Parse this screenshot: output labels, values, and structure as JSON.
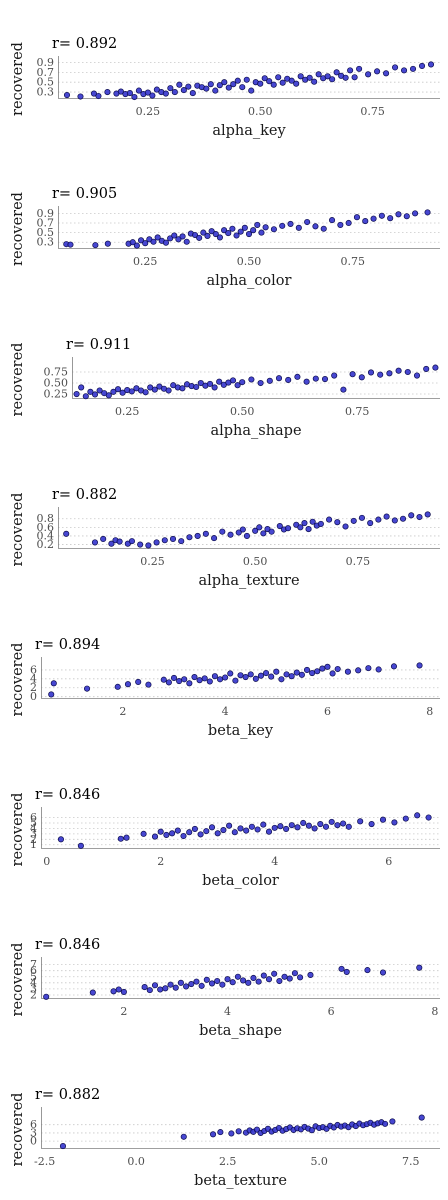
{
  "chart_data": [
    {
      "type": "scatter",
      "title": "r= 0.892",
      "xlabel": "alpha_key",
      "ylabel": "recovered",
      "xlim": [
        0.05,
        0.9
      ],
      "ylim": [
        0.18,
        0.95
      ],
      "xticks": [
        0.25,
        0.5,
        0.75
      ],
      "xtick_labels": [
        "0.25",
        "0.50",
        "0.75"
      ],
      "yticks": [
        0.3,
        0.5,
        0.7,
        0.9
      ],
      "ytick_labels": [
        "0.3",
        "0.5",
        "0.7",
        "0.9"
      ],
      "grid": "horizontal-dotted",
      "x": [
        0.07,
        0.1,
        0.13,
        0.14,
        0.16,
        0.18,
        0.19,
        0.2,
        0.21,
        0.22,
        0.23,
        0.24,
        0.25,
        0.26,
        0.27,
        0.28,
        0.29,
        0.3,
        0.31,
        0.32,
        0.33,
        0.34,
        0.35,
        0.36,
        0.37,
        0.38,
        0.39,
        0.4,
        0.41,
        0.42,
        0.43,
        0.44,
        0.45,
        0.46,
        0.47,
        0.48,
        0.49,
        0.5,
        0.51,
        0.52,
        0.53,
        0.54,
        0.55,
        0.56,
        0.57,
        0.58,
        0.59,
        0.6,
        0.61,
        0.62,
        0.63,
        0.64,
        0.65,
        0.66,
        0.67,
        0.68,
        0.69,
        0.7,
        0.71,
        0.72,
        0.74,
        0.76,
        0.78,
        0.8,
        0.82,
        0.84,
        0.86,
        0.88
      ],
      "y": [
        0.24,
        0.21,
        0.27,
        0.22,
        0.3,
        0.27,
        0.31,
        0.26,
        0.28,
        0.2,
        0.33,
        0.26,
        0.29,
        0.23,
        0.35,
        0.3,
        0.27,
        0.38,
        0.3,
        0.45,
        0.34,
        0.41,
        0.28,
        0.43,
        0.4,
        0.37,
        0.46,
        0.33,
        0.44,
        0.5,
        0.39,
        0.46,
        0.53,
        0.4,
        0.55,
        0.33,
        0.5,
        0.47,
        0.58,
        0.52,
        0.45,
        0.6,
        0.49,
        0.57,
        0.53,
        0.47,
        0.62,
        0.55,
        0.59,
        0.51,
        0.66,
        0.58,
        0.62,
        0.56,
        0.7,
        0.63,
        0.59,
        0.74,
        0.6,
        0.77,
        0.66,
        0.72,
        0.68,
        0.8,
        0.74,
        0.77,
        0.83,
        0.86
      ]
    },
    {
      "type": "scatter",
      "title": "r= 0.905",
      "xlabel": "alpha_color",
      "ylabel": "recovered",
      "xlim": [
        0.04,
        0.96
      ],
      "ylim": [
        0.18,
        0.97
      ],
      "xticks": [
        0.25,
        0.5,
        0.75
      ],
      "xtick_labels": [
        "0.25",
        "0.50",
        "0.75"
      ],
      "yticks": [
        0.3,
        0.5,
        0.7,
        0.9
      ],
      "ytick_labels": [
        "0.3",
        "0.5",
        "0.7",
        "0.9"
      ],
      "grid": "horizontal-dotted",
      "x": [
        0.06,
        0.07,
        0.13,
        0.16,
        0.21,
        0.22,
        0.23,
        0.24,
        0.25,
        0.26,
        0.27,
        0.28,
        0.29,
        0.3,
        0.31,
        0.32,
        0.33,
        0.34,
        0.35,
        0.36,
        0.37,
        0.38,
        0.39,
        0.4,
        0.41,
        0.42,
        0.43,
        0.44,
        0.45,
        0.46,
        0.47,
        0.48,
        0.49,
        0.5,
        0.51,
        0.52,
        0.53,
        0.54,
        0.56,
        0.58,
        0.6,
        0.62,
        0.64,
        0.66,
        0.68,
        0.7,
        0.72,
        0.74,
        0.76,
        0.78,
        0.8,
        0.82,
        0.84,
        0.86,
        0.88,
        0.9,
        0.93
      ],
      "y": [
        0.26,
        0.25,
        0.24,
        0.27,
        0.27,
        0.3,
        0.23,
        0.34,
        0.28,
        0.36,
        0.31,
        0.4,
        0.33,
        0.29,
        0.38,
        0.44,
        0.36,
        0.42,
        0.31,
        0.48,
        0.45,
        0.39,
        0.5,
        0.43,
        0.53,
        0.47,
        0.4,
        0.55,
        0.49,
        0.58,
        0.44,
        0.52,
        0.6,
        0.47,
        0.55,
        0.66,
        0.5,
        0.61,
        0.57,
        0.64,
        0.68,
        0.6,
        0.72,
        0.63,
        0.58,
        0.76,
        0.66,
        0.7,
        0.82,
        0.74,
        0.79,
        0.85,
        0.8,
        0.88,
        0.84,
        0.9,
        0.92
      ]
    },
    {
      "type": "scatter",
      "title": "r= 0.911",
      "xlabel": "alpha_shape",
      "ylabel": "recovered",
      "xlim": [
        0.13,
        0.93
      ],
      "ylim": [
        0.16,
        1.0
      ],
      "xticks": [
        0.25,
        0.5,
        0.75
      ],
      "xtick_labels": [
        "0.25",
        "0.50",
        "0.75"
      ],
      "yticks": [
        0.25,
        0.5,
        0.75
      ],
      "ytick_labels": [
        "0.25",
        "0.50",
        "0.75"
      ],
      "grid": "horizontal-dotted",
      "x": [
        0.14,
        0.15,
        0.16,
        0.17,
        0.18,
        0.19,
        0.2,
        0.21,
        0.22,
        0.23,
        0.24,
        0.25,
        0.26,
        0.27,
        0.28,
        0.29,
        0.3,
        0.31,
        0.32,
        0.33,
        0.34,
        0.35,
        0.36,
        0.37,
        0.38,
        0.39,
        0.4,
        0.41,
        0.42,
        0.43,
        0.44,
        0.45,
        0.46,
        0.47,
        0.48,
        0.49,
        0.5,
        0.52,
        0.54,
        0.56,
        0.58,
        0.6,
        0.62,
        0.64,
        0.66,
        0.68,
        0.7,
        0.72,
        0.74,
        0.76,
        0.78,
        0.8,
        0.82,
        0.84,
        0.86,
        0.88,
        0.9,
        0.92
      ],
      "y": [
        0.25,
        0.4,
        0.2,
        0.3,
        0.24,
        0.33,
        0.27,
        0.22,
        0.3,
        0.36,
        0.28,
        0.34,
        0.31,
        0.38,
        0.33,
        0.29,
        0.4,
        0.35,
        0.42,
        0.37,
        0.33,
        0.45,
        0.4,
        0.38,
        0.47,
        0.43,
        0.41,
        0.5,
        0.44,
        0.48,
        0.4,
        0.53,
        0.46,
        0.51,
        0.56,
        0.45,
        0.52,
        0.58,
        0.5,
        0.55,
        0.61,
        0.57,
        0.64,
        0.53,
        0.6,
        0.59,
        0.67,
        0.35,
        0.7,
        0.63,
        0.74,
        0.69,
        0.72,
        0.78,
        0.75,
        0.67,
        0.82,
        0.85
      ]
    },
    {
      "type": "scatter",
      "title": "r= 0.882",
      "xlabel": "alpha_texture",
      "ylabel": "recovered",
      "xlim": [
        0.02,
        0.95
      ],
      "ylim": [
        0.12,
        0.98
      ],
      "xticks": [
        0.25,
        0.5,
        0.75
      ],
      "xtick_labels": [
        "0.25",
        "0.50",
        "0.75"
      ],
      "yticks": [
        0.2,
        0.4,
        0.6,
        0.8
      ],
      "ytick_labels": [
        "0.2",
        "0.4",
        "0.6",
        "0.8"
      ],
      "grid": "horizontal-dotted",
      "x": [
        0.04,
        0.11,
        0.13,
        0.15,
        0.16,
        0.17,
        0.19,
        0.2,
        0.22,
        0.24,
        0.26,
        0.28,
        0.3,
        0.32,
        0.34,
        0.36,
        0.38,
        0.4,
        0.42,
        0.44,
        0.46,
        0.47,
        0.48,
        0.5,
        0.51,
        0.52,
        0.53,
        0.54,
        0.56,
        0.57,
        0.58,
        0.6,
        0.61,
        0.62,
        0.63,
        0.64,
        0.65,
        0.66,
        0.68,
        0.7,
        0.72,
        0.74,
        0.76,
        0.78,
        0.8,
        0.82,
        0.84,
        0.86,
        0.88,
        0.9,
        0.92
      ],
      "y": [
        0.45,
        0.25,
        0.33,
        0.22,
        0.3,
        0.27,
        0.22,
        0.28,
        0.2,
        0.18,
        0.25,
        0.3,
        0.33,
        0.28,
        0.37,
        0.4,
        0.45,
        0.35,
        0.5,
        0.43,
        0.48,
        0.55,
        0.4,
        0.52,
        0.6,
        0.46,
        0.56,
        0.5,
        0.63,
        0.55,
        0.58,
        0.66,
        0.6,
        0.7,
        0.56,
        0.73,
        0.64,
        0.68,
        0.78,
        0.72,
        0.62,
        0.75,
        0.82,
        0.7,
        0.78,
        0.85,
        0.76,
        0.8,
        0.88,
        0.84,
        0.9
      ]
    },
    {
      "type": "scatter",
      "title": "r= 0.894",
      "xlabel": "beta_key",
      "ylabel": "recovered",
      "xlim": [
        0.4,
        8.2
      ],
      "ylim": [
        -0.3,
        8.0
      ],
      "xticks": [
        2,
        4,
        6,
        8
      ],
      "xtick_labels": [
        "2",
        "4",
        "6",
        "8"
      ],
      "yticks": [
        0,
        2,
        4,
        6
      ],
      "ytick_labels": [
        "0",
        "2",
        "4",
        "6"
      ],
      "grid": "horizontal-dotted",
      "x": [
        0.6,
        0.65,
        1.3,
        1.9,
        2.1,
        2.3,
        2.5,
        2.8,
        2.9,
        3.0,
        3.1,
        3.2,
        3.3,
        3.4,
        3.5,
        3.6,
        3.7,
        3.8,
        3.9,
        4.0,
        4.1,
        4.2,
        4.3,
        4.4,
        4.5,
        4.6,
        4.7,
        4.8,
        4.9,
        5.0,
        5.1,
        5.2,
        5.3,
        5.4,
        5.5,
        5.6,
        5.7,
        5.8,
        5.9,
        6.0,
        6.1,
        6.2,
        6.4,
        6.6,
        6.8,
        7.0,
        7.3,
        7.8
      ],
      "y": [
        0.5,
        3.0,
        1.8,
        2.2,
        2.8,
        3.3,
        2.7,
        3.8,
        3.2,
        4.2,
        3.5,
        3.9,
        3.0,
        4.4,
        3.7,
        4.1,
        3.4,
        4.6,
        3.9,
        4.3,
        5.2,
        3.6,
        4.8,
        4.4,
        5.0,
        4.0,
        4.7,
        5.3,
        4.5,
        5.6,
        3.9,
        5.0,
        4.6,
        5.4,
        4.9,
        6.0,
        5.3,
        5.7,
        6.3,
        6.7,
        5.2,
        6.2,
        5.6,
        5.9,
        6.4,
        6.1,
        6.8,
        7.0
      ]
    },
    {
      "type": "scatter",
      "title": "r= 0.846",
      "xlabel": "beta_color",
      "ylabel": "recovered",
      "xlim": [
        -0.1,
        6.9
      ],
      "ylim": [
        0.4,
        7.2
      ],
      "xticks": [
        0,
        2,
        4,
        6
      ],
      "xtick_labels": [
        "0",
        "2",
        "4",
        "6"
      ],
      "yticks": [
        1,
        2,
        3,
        4,
        5,
        6
      ],
      "ytick_labels": [
        "1",
        "2",
        "3",
        "4",
        "5",
        "6"
      ],
      "grid": "horizontal-dotted",
      "x": [
        0.25,
        0.6,
        1.3,
        1.4,
        1.7,
        1.9,
        2.0,
        2.1,
        2.2,
        2.3,
        2.4,
        2.5,
        2.6,
        2.7,
        2.8,
        2.9,
        3.0,
        3.1,
        3.2,
        3.3,
        3.4,
        3.5,
        3.6,
        3.7,
        3.8,
        3.9,
        4.0,
        4.1,
        4.2,
        4.3,
        4.4,
        4.5,
        4.6,
        4.7,
        4.8,
        4.9,
        5.0,
        5.1,
        5.2,
        5.3,
        5.5,
        5.7,
        5.9,
        6.1,
        6.3,
        6.5,
        6.7
      ],
      "y": [
        2.0,
        0.8,
        2.1,
        2.3,
        3.0,
        2.5,
        3.4,
        2.8,
        3.1,
        3.6,
        2.6,
        3.3,
        3.9,
        2.9,
        3.5,
        4.2,
        3.1,
        3.7,
        4.5,
        3.3,
        4.0,
        3.6,
        4.3,
        3.8,
        4.7,
        3.4,
        4.1,
        4.4,
        3.9,
        4.6,
        4.2,
        5.0,
        4.5,
        4.0,
        4.8,
        4.3,
        5.2,
        4.6,
        4.9,
        4.3,
        5.3,
        4.8,
        5.6,
        5.1,
        5.8,
        6.4,
        6.0
      ]
    },
    {
      "type": "scatter",
      "title": "r= 0.846",
      "xlabel": "beta_shape",
      "ylabel": "recovered",
      "xlim": [
        0.4,
        8.1
      ],
      "ylim": [
        1.5,
        7.6
      ],
      "xticks": [
        2,
        4,
        6,
        8
      ],
      "xtick_labels": [
        "2",
        "4",
        "6",
        "8"
      ],
      "yticks": [
        2,
        3,
        4,
        5,
        6,
        7
      ],
      "ytick_labels": [
        "2",
        "3",
        "4",
        "5",
        "6",
        "7"
      ],
      "grid": "horizontal-dotted",
      "x": [
        0.5,
        1.4,
        1.8,
        1.9,
        2.0,
        2.4,
        2.5,
        2.6,
        2.7,
        2.8,
        2.9,
        3.0,
        3.1,
        3.2,
        3.3,
        3.4,
        3.5,
        3.6,
        3.7,
        3.8,
        3.9,
        4.0,
        4.1,
        4.2,
        4.3,
        4.4,
        4.5,
        4.6,
        4.7,
        4.8,
        4.9,
        5.0,
        5.1,
        5.2,
        5.3,
        5.4,
        5.6,
        6.2,
        6.3,
        6.7,
        7.0,
        7.7
      ],
      "y": [
        1.7,
        2.4,
        2.6,
        2.9,
        2.5,
        3.3,
        2.8,
        3.6,
        2.9,
        3.1,
        3.7,
        3.2,
        4.0,
        3.4,
        3.8,
        4.2,
        3.5,
        4.5,
        3.9,
        4.3,
        3.7,
        4.6,
        4.1,
        5.0,
        4.4,
        4.0,
        4.8,
        4.2,
        5.2,
        4.6,
        5.5,
        4.3,
        5.0,
        4.7,
        5.6,
        4.9,
        5.3,
        6.3,
        5.8,
        6.1,
        5.7,
        6.5
      ]
    },
    {
      "type": "scatter",
      "title": "r= 0.882",
      "xlabel": "beta_texture",
      "ylabel": "recovered",
      "xlim": [
        -2.6,
        8.3
      ],
      "ylim": [
        -2.5,
        11.0
      ],
      "xticks": [
        -2.5,
        0.0,
        2.5,
        5.0,
        7.5
      ],
      "xtick_labels": [
        "-2.5",
        "0.0",
        "2.5",
        "5.0",
        "7.5"
      ],
      "yticks": [
        0,
        3,
        6
      ],
      "ytick_labels": [
        "0",
        "3",
        "6"
      ],
      "grid": "horizontal-dotted",
      "x": [
        -2.0,
        1.3,
        2.1,
        2.3,
        2.6,
        2.8,
        3.0,
        3.1,
        3.2,
        3.3,
        3.4,
        3.5,
        3.6,
        3.7,
        3.8,
        3.9,
        4.0,
        4.1,
        4.2,
        4.3,
        4.4,
        4.5,
        4.6,
        4.7,
        4.8,
        4.9,
        5.0,
        5.1,
        5.2,
        5.3,
        5.4,
        5.5,
        5.6,
        5.7,
        5.8,
        5.9,
        6.0,
        6.1,
        6.2,
        6.3,
        6.4,
        6.5,
        6.6,
        6.7,
        6.8,
        7.0,
        7.8
      ],
      "y": [
        -1.8,
        1.6,
        2.5,
        3.3,
        2.8,
        3.6,
        3.1,
        3.9,
        3.4,
        4.2,
        3.0,
        3.7,
        4.5,
        3.5,
        4.1,
        4.8,
        3.8,
        4.4,
        5.0,
        4.1,
        4.7,
        4.3,
        5.2,
        4.6,
        4.0,
        5.4,
        4.8,
        5.1,
        4.5,
        5.6,
        5.0,
        5.9,
        5.3,
        5.7,
        5.1,
        6.1,
        5.5,
        6.4,
        5.8,
        6.2,
        6.7,
        6.0,
        6.5,
        6.9,
        6.3,
        7.2,
        8.6
      ]
    }
  ]
}
